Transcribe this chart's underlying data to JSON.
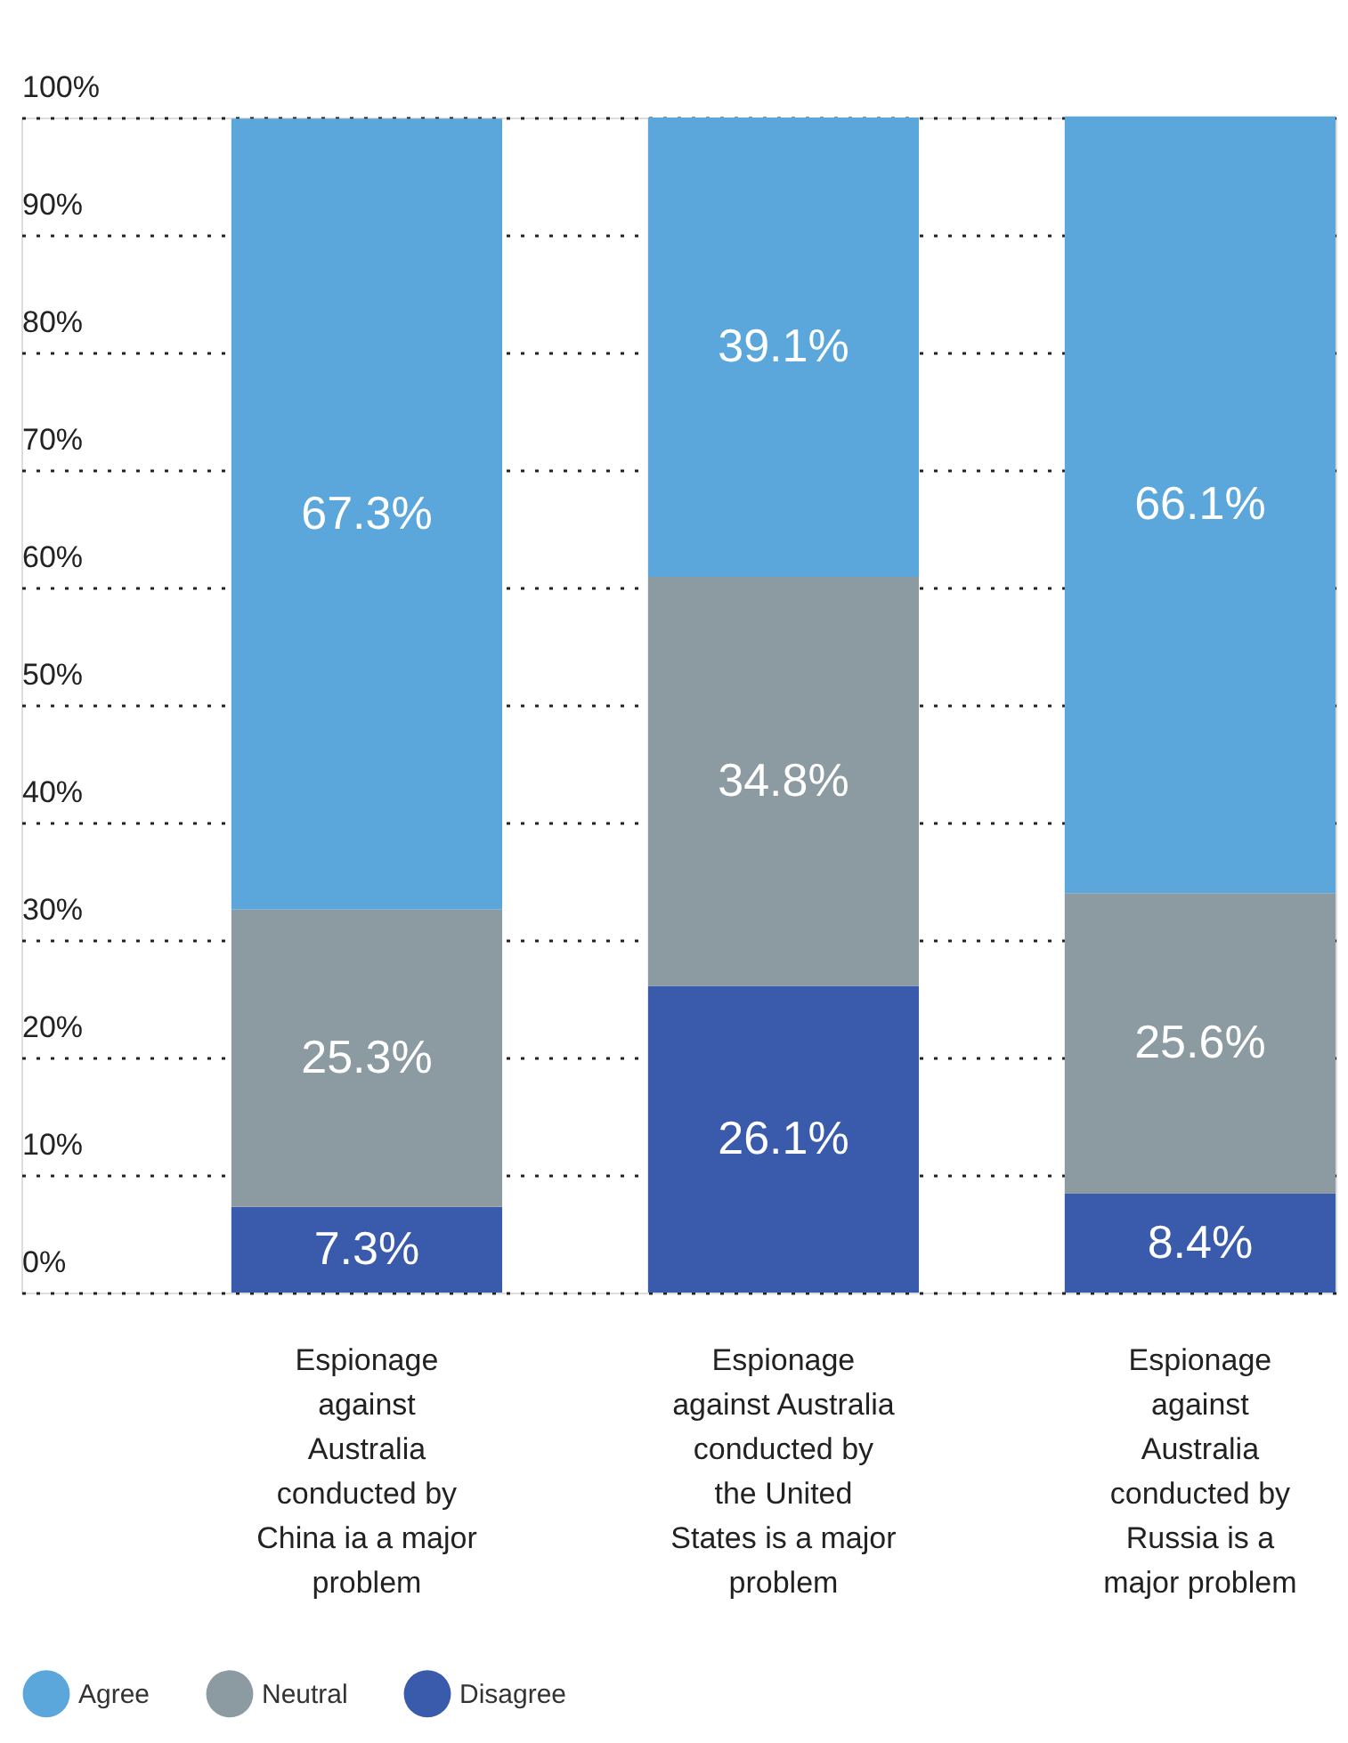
{
  "chart_data": {
    "type": "bar",
    "stacked": true,
    "categories": [
      "Espionage\nagainst\nAustralia\nconducted by\nChina ia a major\nproblem",
      "Espionage\nagainst Australia\nconducted by\nthe United\nStates is a major\nproblem",
      "Espionage\nagainst\nAustralia\nconducted by\nRussia is a\nmajor problem"
    ],
    "series": [
      {
        "name": "Disagree",
        "color": "#3a5aab",
        "values": [
          7.3,
          26.1,
          8.4
        ]
      },
      {
        "name": "Neutral",
        "color": "#8c9aa1",
        "values": [
          25.3,
          34.8,
          25.6
        ]
      },
      {
        "name": "Agree",
        "color": "#5ba7dc",
        "values": [
          67.3,
          39.1,
          66.1
        ]
      }
    ],
    "ylim": [
      0,
      100
    ],
    "yticks": [
      {
        "value": 0,
        "label": "0%"
      },
      {
        "value": 10,
        "label": "10%"
      },
      {
        "value": 20,
        "label": "20%"
      },
      {
        "value": 30,
        "label": "30%"
      },
      {
        "value": 40,
        "label": "40%"
      },
      {
        "value": 50,
        "label": "50%"
      },
      {
        "value": 60,
        "label": "60%"
      },
      {
        "value": 70,
        "label": "70%"
      },
      {
        "value": 80,
        "label": "80%"
      },
      {
        "value": 90,
        "label": "90%"
      },
      {
        "value": 100,
        "label": "100%"
      }
    ],
    "value_labels": [
      [
        "7.3%",
        "26.1%",
        "8.4%"
      ],
      [
        "25.3%",
        "34.8%",
        "25.6%"
      ],
      [
        "67.3%",
        "39.1%",
        "66.1%"
      ]
    ],
    "grid": "y",
    "legend": "bottom left"
  }
}
